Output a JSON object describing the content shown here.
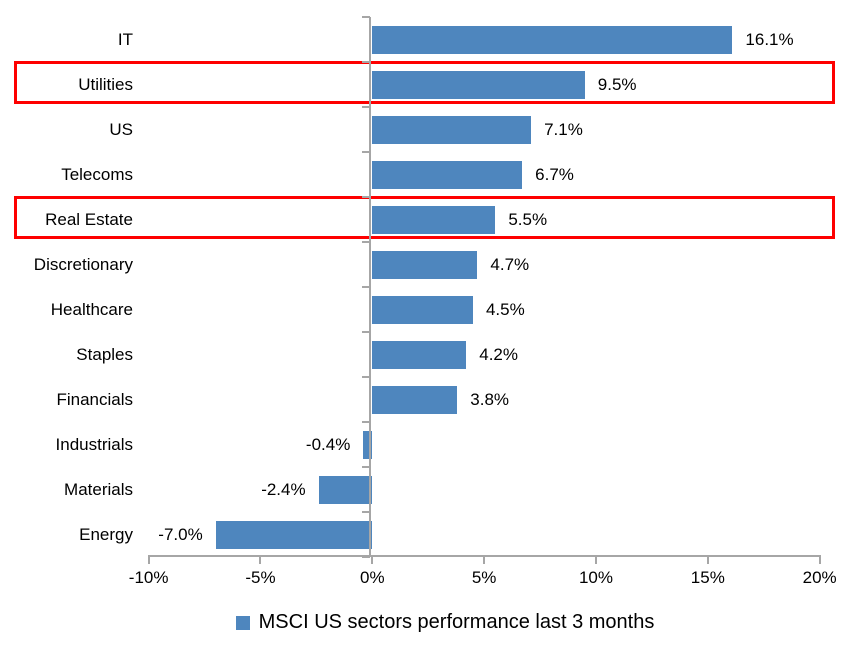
{
  "chart_data": {
    "type": "bar",
    "orientation": "horizontal",
    "categories": [
      "IT",
      "Utilities",
      "US",
      "Telecoms",
      "Real Estate",
      "Discretionary",
      "Healthcare",
      "Staples",
      "Financials",
      "Industrials",
      "Materials",
      "Energy"
    ],
    "values": [
      16.1,
      9.5,
      7.1,
      6.7,
      5.5,
      4.7,
      4.5,
      4.2,
      3.8,
      -0.4,
      -2.4,
      -7.0
    ],
    "value_labels": [
      "16.1%",
      "9.5%",
      "7.1%",
      "6.7%",
      "5.5%",
      "4.7%",
      "4.5%",
      "4.2%",
      "3.8%",
      "-0.4%",
      "-2.4%",
      "-7.0%"
    ],
    "highlighted_categories": [
      "Utilities",
      "Real Estate"
    ],
    "highlighted_row_indexes": [
      1,
      4
    ],
    "x_tick_labels": [
      "-10%",
      "-5%",
      "0%",
      "5%",
      "10%",
      "15%",
      "20%"
    ],
    "x_tick_values": [
      -10,
      -5,
      0,
      5,
      10,
      15,
      20
    ],
    "xlim": [
      -10,
      20
    ],
    "grid": false,
    "legend": "MSCI US sectors performance last 3 months",
    "legend_position": "bottom",
    "colors": {
      "bar": "#4e86be",
      "highlight_border": "#fe0000",
      "axis": "#a6a6a6",
      "text": "#000000"
    }
  }
}
